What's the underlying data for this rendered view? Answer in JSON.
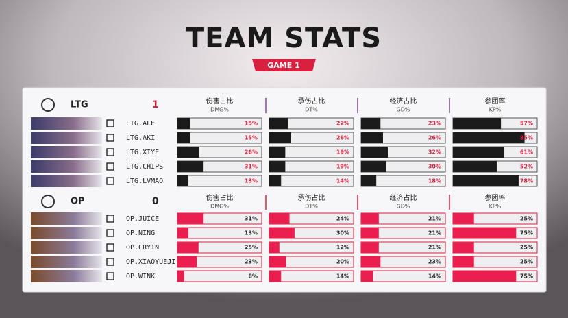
{
  "header": {
    "title": "TEAM STATS",
    "subtitle": "GAME 1"
  },
  "columns": [
    {
      "label": "伤害占比",
      "sublabel": "DMG%"
    },
    {
      "label": "承伤占比",
      "sublabel": "DT%"
    },
    {
      "label": "经济占比",
      "sublabel": "GD%"
    },
    {
      "label": "参团率",
      "sublabel": "KP%"
    }
  ],
  "teams": [
    {
      "name": "LTG",
      "score": 1,
      "players": [
        {
          "name": "LTG.ALE",
          "values": [
            15,
            22,
            23,
            57
          ],
          "value_labels": [
            "15%",
            "22%",
            "23%",
            "57%"
          ]
        },
        {
          "name": "LTG.AKI",
          "values": [
            15,
            26,
            26,
            85
          ],
          "value_labels": [
            "15%",
            "26%",
            "26%",
            "85%"
          ]
        },
        {
          "name": "LTG.XIYE",
          "values": [
            26,
            19,
            32,
            61
          ],
          "value_labels": [
            "26%",
            "19%",
            "32%",
            "61%"
          ]
        },
        {
          "name": "LTG.CHIPS",
          "values": [
            31,
            19,
            30,
            52
          ],
          "value_labels": [
            "31%",
            "19%",
            "30%",
            "52%"
          ]
        },
        {
          "name": "LTG.LVMAO",
          "values": [
            13,
            14,
            18,
            78
          ],
          "value_labels": [
            "13%",
            "14%",
            "18%",
            "78%"
          ]
        }
      ]
    },
    {
      "name": "OP",
      "score": 0,
      "players": [
        {
          "name": "OP.JUICE",
          "values": [
            31,
            24,
            21,
            25
          ],
          "value_labels": [
            "31%",
            "24%",
            "21%",
            "25%"
          ]
        },
        {
          "name": "OP.NING",
          "values": [
            13,
            30,
            21,
            75
          ],
          "value_labels": [
            "13%",
            "30%",
            "21%",
            "75%"
          ]
        },
        {
          "name": "OP.CRYIN",
          "values": [
            25,
            12,
            21,
            25
          ],
          "value_labels": [
            "25%",
            "12%",
            "21%",
            "25%"
          ]
        },
        {
          "name": "OP.XIAOYUEJI",
          "values": [
            23,
            20,
            23,
            25
          ],
          "value_labels": [
            "23%",
            "20%",
            "23%",
            "25%"
          ]
        },
        {
          "name": "OP.WINK",
          "values": [
            8,
            14,
            14,
            75
          ],
          "value_labels": [
            "8%",
            "14%",
            "14%",
            "75%"
          ]
        }
      ]
    }
  ]
}
